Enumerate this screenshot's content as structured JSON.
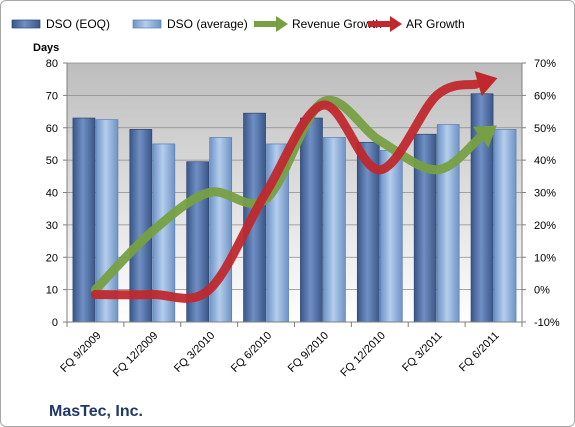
{
  "chart_data": {
    "type": "bar",
    "categories": [
      "FQ 9/2009",
      "FQ 12/2009",
      "FQ 3/2010",
      "FQ 6/2010",
      "FQ 9/2010",
      "FQ 12/2010",
      "FQ 3/2011",
      "FQ 6/2011"
    ],
    "series": [
      {
        "name": "DSO (EOQ)",
        "type": "bar",
        "axis": "left",
        "color": "#4f6fa6",
        "values": [
          63,
          59.5,
          49.5,
          64.5,
          63,
          55.5,
          58,
          70.5
        ]
      },
      {
        "name": "DSO (average)",
        "type": "bar",
        "axis": "left",
        "color": "#8fb2df",
        "values": [
          62.5,
          55,
          57,
          55,
          57,
          53,
          61,
          59.5
        ]
      },
      {
        "name": "Revenue Growth",
        "type": "line",
        "axis": "right",
        "color": "#77a043",
        "values": [
          0,
          18,
          30,
          28,
          58,
          46,
          37,
          50
        ]
      },
      {
        "name": "AR Growth",
        "type": "line",
        "axis": "right",
        "color": "#c0282d",
        "values": [
          -1.5,
          -1.5,
          0,
          30,
          57,
          37,
          60,
          65
        ]
      }
    ],
    "ylabel": "Days",
    "ylim": [
      0,
      80
    ],
    "yticks": [
      0,
      10,
      20,
      30,
      40,
      50,
      60,
      70,
      80
    ],
    "y2lim": [
      -10,
      70
    ],
    "y2ticks": [
      "-10%",
      "0%",
      "10%",
      "20%",
      "30%",
      "40%",
      "50%",
      "60%",
      "70%"
    ],
    "legend_position": "top",
    "grid": true
  },
  "company": "MasTec, Inc."
}
